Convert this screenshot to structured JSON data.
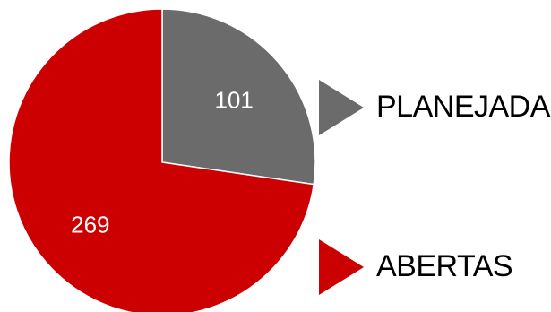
{
  "chart_data": {
    "type": "pie",
    "slices": [
      {
        "label": "PLANEJADAS",
        "value": 101,
        "color": "#6b6b6b"
      },
      {
        "label": "ABERTAS",
        "value": 269,
        "color": "#cc0000"
      }
    ],
    "data_labels": [
      "101",
      "269"
    ],
    "legend_position": "right",
    "start_angle_deg": 0,
    "direction": "clockwise"
  }
}
